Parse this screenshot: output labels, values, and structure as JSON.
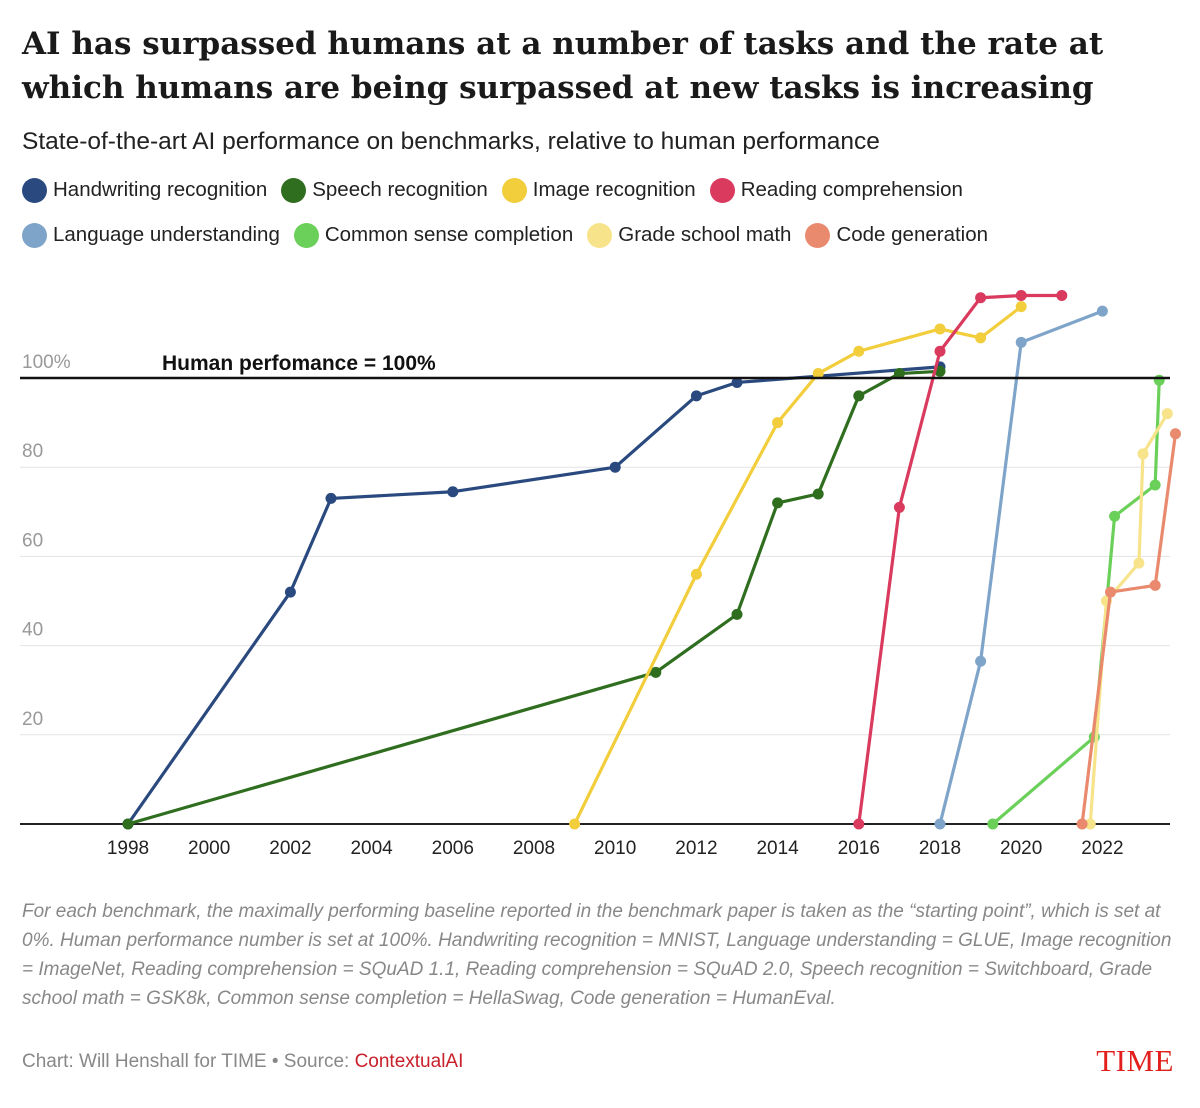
{
  "header": {
    "title": "AI has surpassed humans at a number of tasks and the rate at which humans are being surpassed at new tasks is increasing",
    "subtitle": "State-of-the-art AI performance on benchmarks, relative to human performance"
  },
  "footer": {
    "note": "For each benchmark, the maximally performing baseline reported in the benchmark paper is taken as the “starting point”, which is set at 0%. Human performance number is set at 100%. Handwriting recognition = MNIST, Language understanding = GLUE, Image recognition = ImageNet, Reading comprehension = SQuAD 1.1, Reading comprehension = SQuAD 2.0, Speech recognition = Switchboard, Grade school math = GSK8k, Common sense completion = HellaSwag, Code generation = HumanEval.",
    "credit_prefix": "Chart: Will Henshall for TIME • Source: ",
    "credit_source": "ContextualAI",
    "brand": "TIME"
  },
  "chart_data": {
    "type": "line",
    "title": "AI has surpassed humans at a number of tasks and the rate at which humans are being surpassed at new tasks is increasing",
    "subtitle": "State-of-the-art AI performance on benchmarks, relative to human performance",
    "xlabel": "",
    "ylabel": "",
    "xlim": [
      1998,
      2023.6
    ],
    "ylim": [
      0,
      120
    ],
    "x_ticks": [
      1998,
      2000,
      2002,
      2004,
      2006,
      2008,
      2010,
      2012,
      2014,
      2016,
      2018,
      2020,
      2022
    ],
    "y_ticks": [
      {
        "value": 100,
        "label": "100%"
      },
      {
        "value": 80,
        "label": "80"
      },
      {
        "value": 60,
        "label": "60"
      },
      {
        "value": 40,
        "label": "40"
      },
      {
        "value": 20,
        "label": "20"
      }
    ],
    "reference_line": {
      "value": 100,
      "label": "Human perfomance = 100%"
    },
    "grid": true,
    "legend_position": "top",
    "series": [
      {
        "name": "Handwriting recognition",
        "color": "#2a4a7f",
        "points": [
          [
            1998,
            0
          ],
          [
            2002,
            52
          ],
          [
            2003,
            73
          ],
          [
            2006,
            74.5
          ],
          [
            2010,
            80
          ],
          [
            2012,
            96
          ],
          [
            2013,
            99
          ],
          [
            2018,
            102.5
          ]
        ]
      },
      {
        "name": "Speech recognition",
        "color": "#2f6e1f",
        "points": [
          [
            1998,
            0
          ],
          [
            2011,
            34
          ],
          [
            2013,
            47
          ],
          [
            2014,
            72
          ],
          [
            2015,
            74
          ],
          [
            2016,
            96
          ],
          [
            2017,
            101
          ],
          [
            2018,
            101.5
          ]
        ]
      },
      {
        "name": "Image recognition",
        "color": "#f2cd3c",
        "points": [
          [
            2009,
            0
          ],
          [
            2012,
            56
          ],
          [
            2014,
            90
          ],
          [
            2015,
            101
          ],
          [
            2016,
            106
          ],
          [
            2018,
            111
          ],
          [
            2019,
            109
          ],
          [
            2020,
            116
          ]
        ]
      },
      {
        "name": "Reading comprehension",
        "color": "#d93a5e",
        "points": [
          [
            2016,
            0
          ],
          [
            2017,
            71
          ],
          [
            2018,
            106
          ],
          [
            2019,
            118
          ],
          [
            2020,
            118.5
          ],
          [
            2021,
            118.5
          ]
        ]
      },
      {
        "name": "Language understanding",
        "color": "#7fa4c9",
        "points": [
          [
            2018,
            0
          ],
          [
            2019,
            36.5
          ],
          [
            2020,
            108
          ],
          [
            2022,
            115
          ]
        ]
      },
      {
        "name": "Common sense completion",
        "color": "#6bd05a",
        "points": [
          [
            2019.3,
            0
          ],
          [
            2021.8,
            19.5
          ],
          [
            2022.3,
            69
          ],
          [
            2023.3,
            76
          ],
          [
            2023.4,
            99.5
          ]
        ]
      },
      {
        "name": "Grade school math",
        "color": "#f7e38a",
        "points": [
          [
            2021.7,
            0
          ],
          [
            2022.1,
            50
          ],
          [
            2022.9,
            58.5
          ],
          [
            2023.0,
            83
          ],
          [
            2023.6,
            92
          ]
        ]
      },
      {
        "name": "Code generation",
        "color": "#e98a6f",
        "points": [
          [
            2021.5,
            0
          ],
          [
            2022.2,
            52
          ],
          [
            2023.3,
            53.5
          ],
          [
            2023.8,
            87.5
          ]
        ]
      }
    ]
  }
}
